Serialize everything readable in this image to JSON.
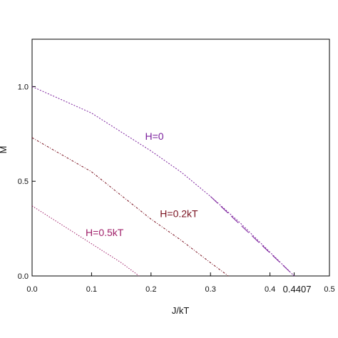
{
  "chart_data": {
    "type": "line",
    "xlabel": "J/kT",
    "ylabel": "M",
    "xlim": [
      0,
      0.5
    ],
    "ylim": [
      0,
      1.25
    ],
    "x_ticks": [
      "0.0",
      "0.1",
      "0.2",
      "0.3",
      "0.4",
      "0.5"
    ],
    "y_ticks": [
      "0.0",
      "0.5",
      "1.0"
    ],
    "special_x_tick": "0.4407",
    "special_x_value": 0.4407,
    "grid": false,
    "series": [
      {
        "name": "H=0",
        "color": "#7a1e9c",
        "x": [
          0.0,
          0.1,
          0.2,
          0.25,
          0.3,
          0.35,
          0.4407
        ],
        "y": [
          1.0,
          0.86,
          0.66,
          0.55,
          0.42,
          0.28,
          0.0
        ],
        "label_at": [
          0.19,
          0.72
        ]
      },
      {
        "name": "H=0.2kT",
        "color": "#7a1220",
        "x": [
          0.0,
          0.1,
          0.2,
          0.25,
          0.3,
          0.33
        ],
        "y": [
          0.73,
          0.55,
          0.3,
          0.19,
          0.07,
          0.0
        ],
        "label_at": [
          0.215,
          0.31
        ]
      },
      {
        "name": "H=0.5kT",
        "color": "#a0206a",
        "x": [
          0.0,
          0.05,
          0.1,
          0.15,
          0.18
        ],
        "y": [
          0.37,
          0.27,
          0.17,
          0.07,
          0.0
        ],
        "label_at": [
          0.09,
          0.21
        ]
      }
    ]
  }
}
